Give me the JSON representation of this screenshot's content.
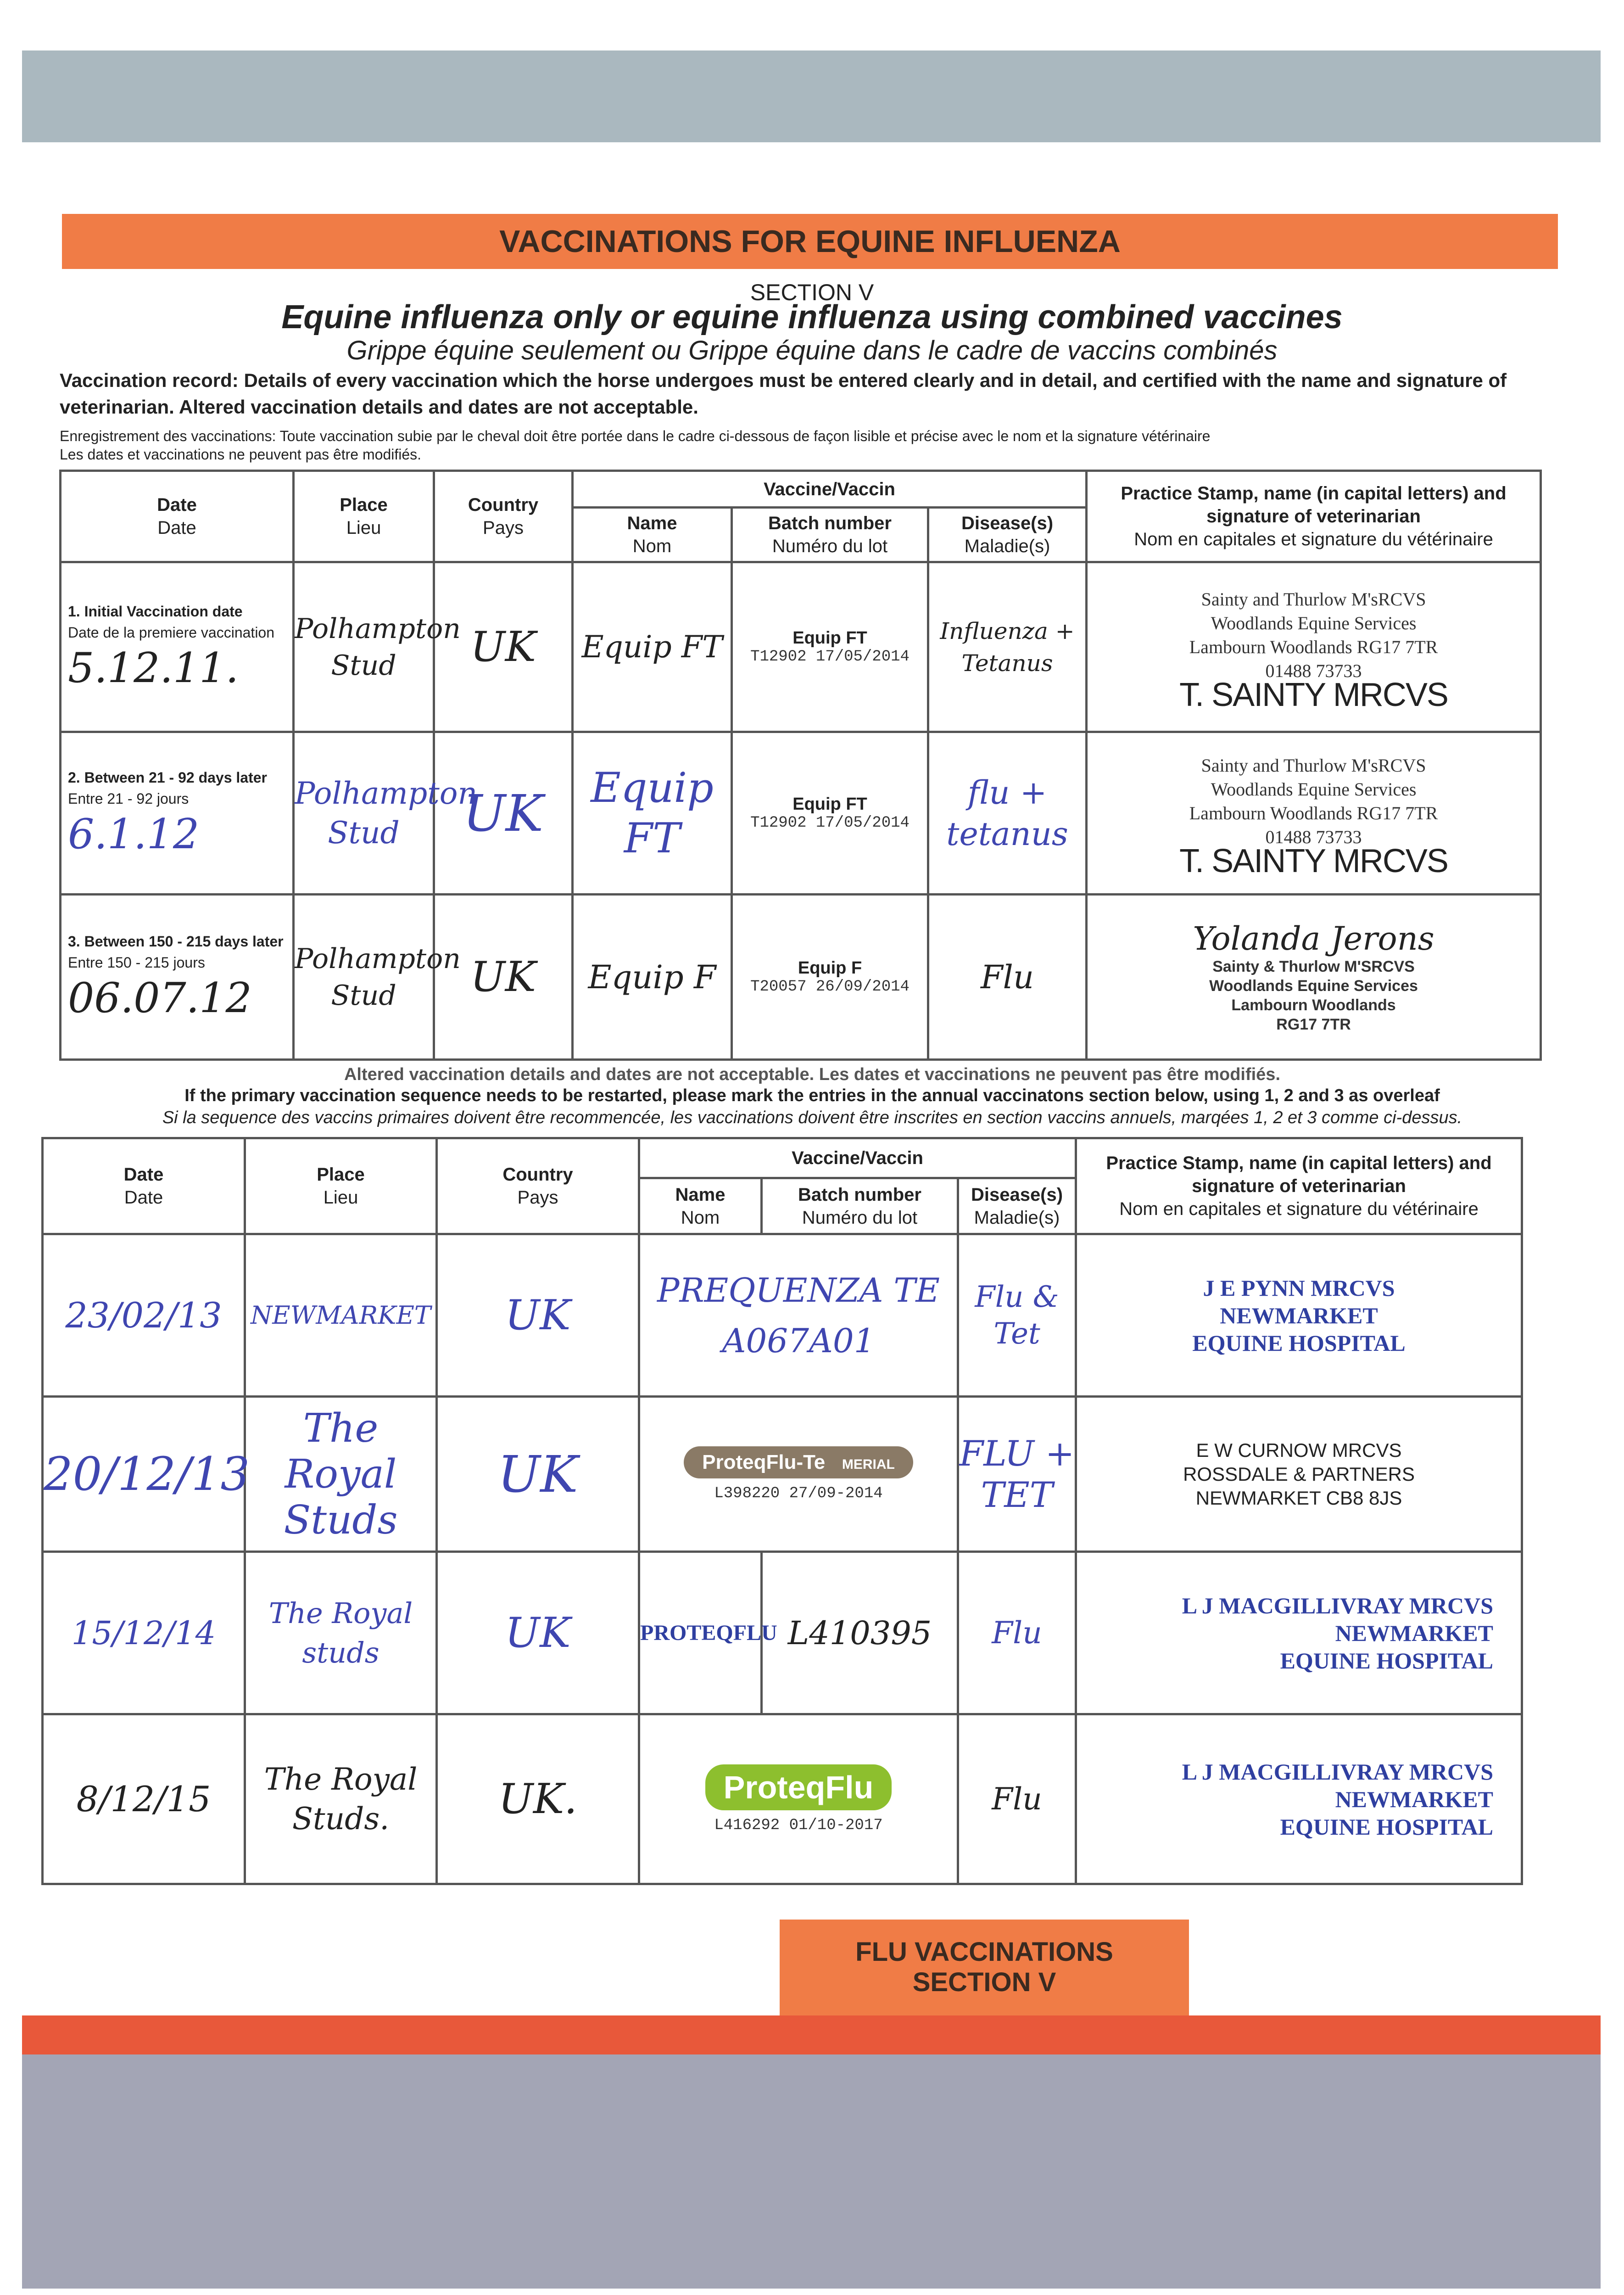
{
  "header": {
    "title": "VACCINATIONS FOR EQUINE INFLUENZA",
    "section": "SECTION V",
    "subtitle_en": "Equine influenza only or equine influenza using combined vaccines",
    "subtitle_fr": "Grippe équine seulement ou Grippe équine dans le cadre de vaccins combinés"
  },
  "instructions": {
    "en": "Vaccination record: Details of every vaccination which the horse undergoes must be entered clearly and in detail, and certified with the name and signature of veterinarian. Altered vaccination details and dates are not acceptable.",
    "fr1": "Enregistrement des vaccinations: Toute vaccination subie par le cheval doit être portée dans le cadre ci-dessous de façon lisible et précise avec le nom et la signature vétérinaire",
    "fr2": "Les dates et vaccinations ne peuvent pas être modifiés."
  },
  "columns": {
    "date": "Date",
    "date_fr": "Date",
    "place": "Place",
    "place_fr": "Lieu",
    "country": "Country",
    "country_fr": "Pays",
    "vaccine": "Vaccine/Vaccin",
    "name": "Name",
    "name_fr": "Nom",
    "batch": "Batch number",
    "batch_fr": "Numéro du lot",
    "disease": "Disease(s)",
    "disease_fr": "Maladie(s)",
    "stamp": "Practice Stamp, name (in capital letters) and signature of veterinarian",
    "stamp_fr": "Nom en capitales et signature du vétérinaire"
  },
  "primary": [
    {
      "label": "1. Initial Vaccination date",
      "label_fr": "Date de la premiere vaccination",
      "date": "5.12.11.",
      "place": "Polhampton Stud",
      "country": "UK",
      "name": "Equip FT",
      "batch_brand": "Equip FT",
      "batch": "T12902 17/05/2014",
      "disease": "Influenza + Tetanus",
      "stamp_lines": [
        "Sainty and Thurlow M'sRCVS",
        "Woodlands Equine Services",
        "Lambourn Woodlands RG17 7TR",
        "01488 73733"
      ],
      "stamp_name": "T. SAINTY MRCVS"
    },
    {
      "label": "2. Between 21 - 92 days later",
      "label_fr": "Entre 21 - 92 jours",
      "date": "6.1.12",
      "place": "Polhampton Stud",
      "country": "UK",
      "name": "Equip FT",
      "batch_brand": "Equip FT",
      "batch": "T12902 17/05/2014",
      "disease": "flu + tetanus",
      "stamp_lines": [
        "Sainty and Thurlow M'sRCVS",
        "Woodlands Equine Services",
        "Lambourn Woodlands RG17 7TR",
        "01488 73733"
      ],
      "stamp_name": "T. SAINTY MRCVS"
    },
    {
      "label": "3. Between 150 - 215  days later",
      "label_fr": "Entre 150 - 215 jours",
      "date": "06.07.12",
      "place": "Polhampton Stud",
      "country": "UK",
      "name": "Equip F",
      "batch_brand": "Equip F",
      "batch": "T20057 26/09/2014",
      "disease": "Flu",
      "stamp_sig": "Yolanda Jerons",
      "stamp_lines": [
        "Sainty & Thurlow M'SRCVS",
        "Woodlands Equine Services",
        "Lambourn Woodlands",
        "RG17 7TR"
      ]
    }
  ],
  "notes": {
    "altered": "Altered vaccination details and dates are not acceptable. Les dates et vaccinations ne peuvent pas être modifiés.",
    "restart_en": "If the primary vaccination sequence needs to be restarted, please mark the entries in the annual vaccinatons section below, using 1, 2 and 3 as overleaf",
    "restart_fr": "Si la sequence des vaccins primaires doivent être recommencée, les vaccinations doivent être inscrites en section vaccins annuels, marqées 1, 2 et 3 comme ci-dessus."
  },
  "annual": [
    {
      "date": "23/02/13",
      "place": "NEWMARKET",
      "country": "UK",
      "name": "PREQUENZA TE",
      "batch": "A067A01",
      "disease": "Flu & Tet",
      "stamp_lines": [
        "J E PYNN MRCVS",
        "NEWMARKET",
        "EQUINE HOSPITAL"
      ]
    },
    {
      "date": "20/12/13",
      "place": "The Royal Studs",
      "country": "UK",
      "name": "ProteqFlu-Te",
      "maker": "MERIAL",
      "batch": "L398220 27/09-2014",
      "disease": "FLU + TET",
      "stamp_lines": [
        "E W CURNOW MRCVS",
        "ROSSDALE & PARTNERS",
        "NEWMARKET CB8 8JS"
      ]
    },
    {
      "date": "15/12/14",
      "place": "The Royal studs",
      "country": "UK",
      "name": "PROTEQFLU",
      "batch": "L410395",
      "disease": "Flu",
      "stamp_lines": [
        "L J MACGILLIVRAY MRCVS",
        "NEWMARKET",
        "EQUINE HOSPITAL"
      ]
    },
    {
      "date": "8/12/15",
      "place": "The Royal Studs.",
      "country": "UK.",
      "name": "ProteqFlu",
      "batch": "L416292 01/10-2017",
      "disease": "Flu",
      "stamp_lines": [
        "L J MACGILLIVRAY MRCVS",
        "NEWMARKET",
        "EQUINE HOSPITAL"
      ]
    }
  ],
  "footer": {
    "line1": "FLU VACCINATIONS",
    "line2": "SECTION V"
  },
  "colors": {
    "orange": "#f07c46",
    "blue_ink": "#3f46b0",
    "proteq_green": "#8dbf2e",
    "proteq_brown": "#8a7a66"
  }
}
